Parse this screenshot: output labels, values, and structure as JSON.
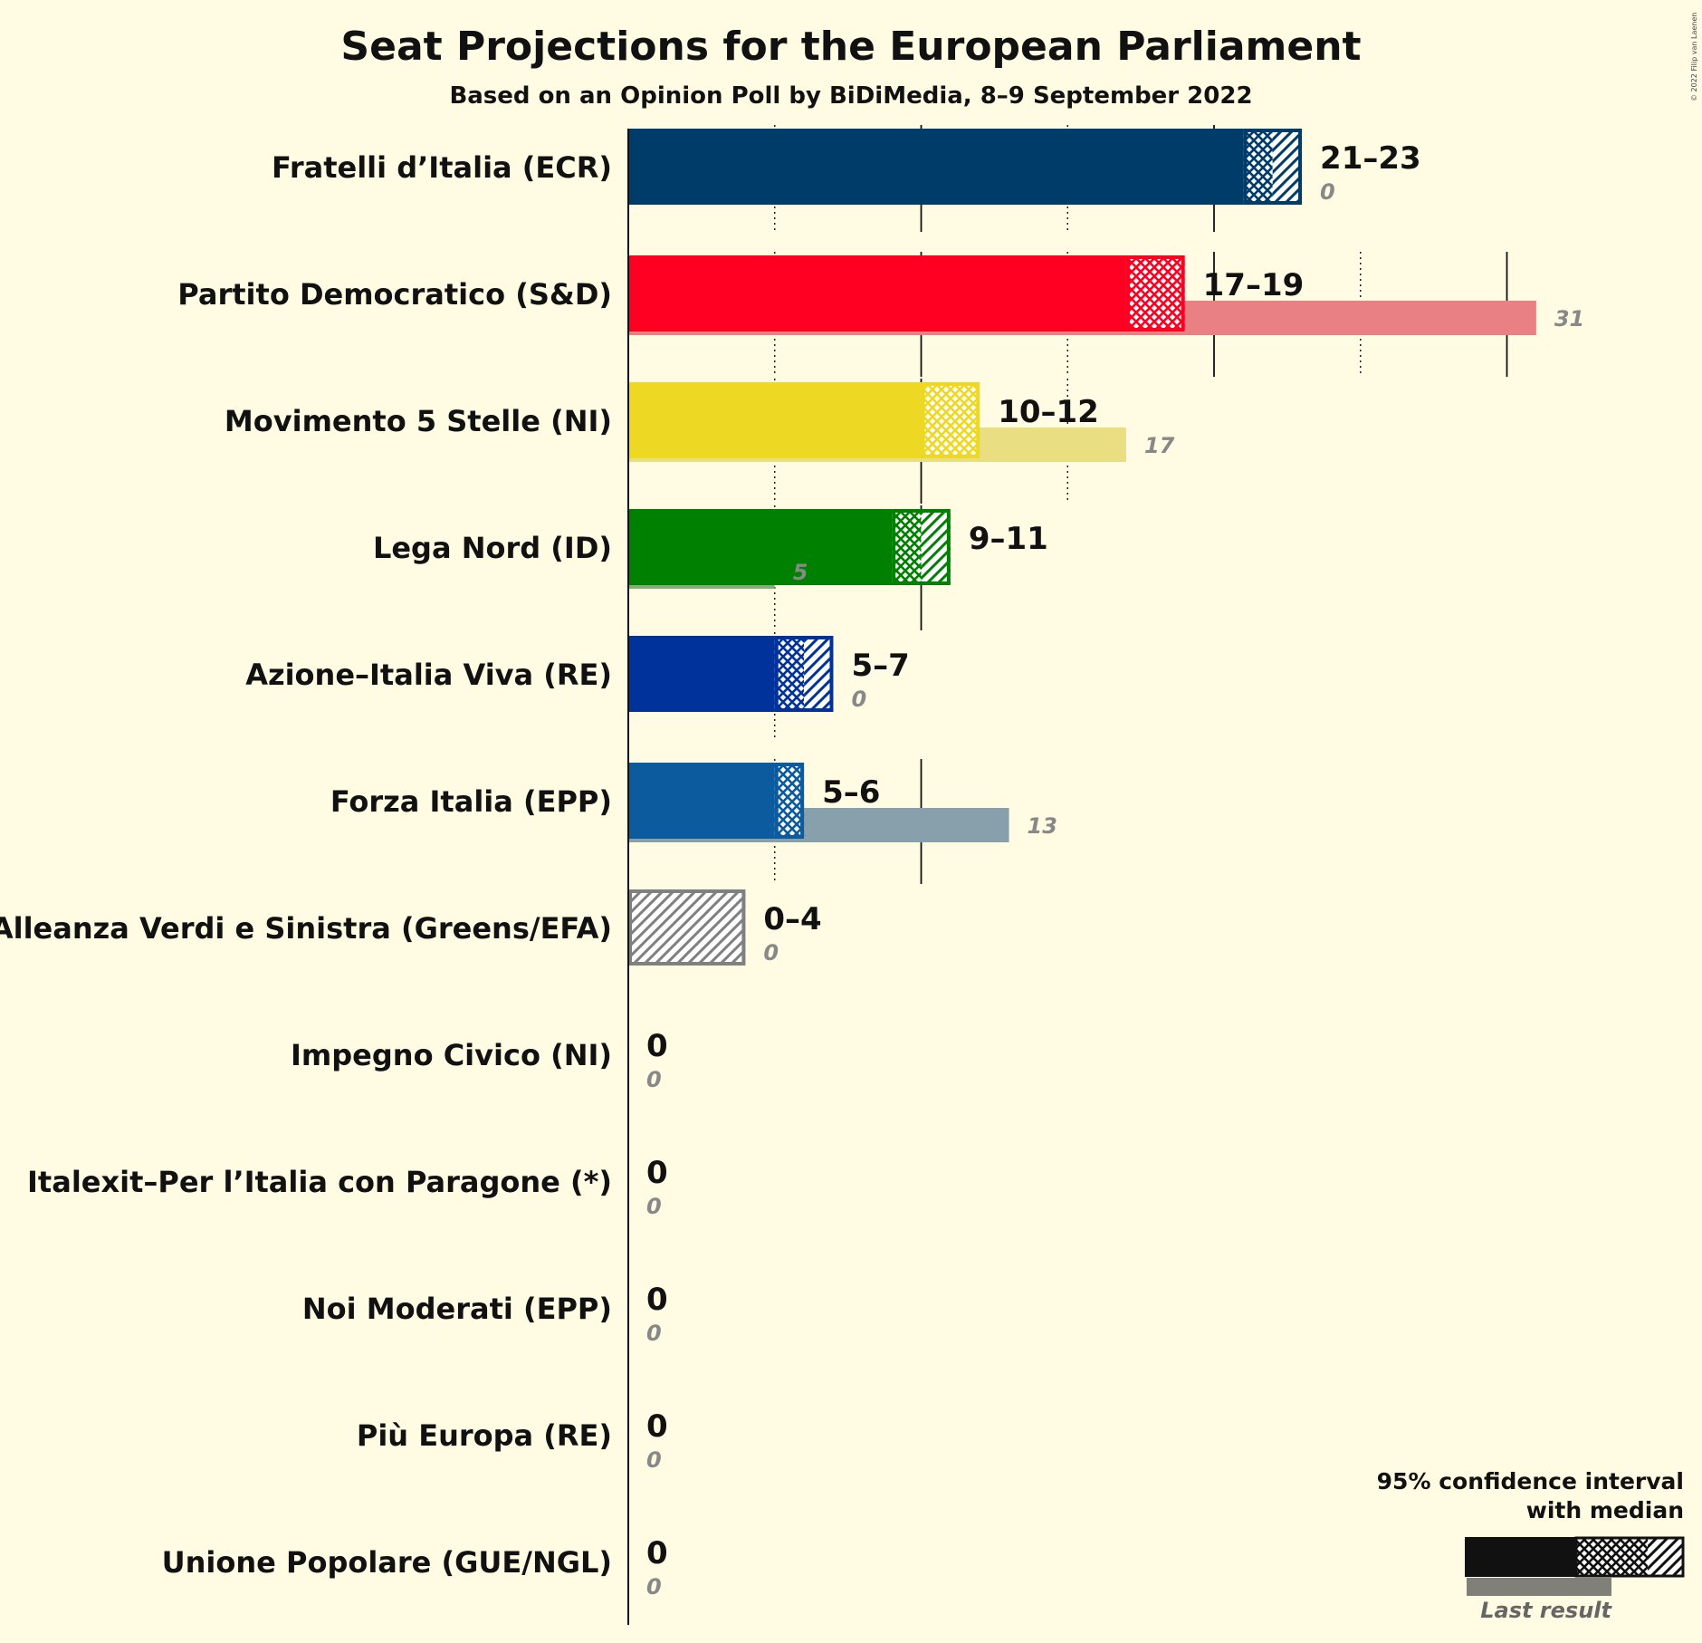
{
  "copyright": "© 2022 Filip van Laenen",
  "chart_data": {
    "type": "bar",
    "orientation": "horizontal",
    "title": "Seat Projections for the European Parliament",
    "subtitle": "Based on an Opinion Poll by BiDiMedia, 8–9 September 2022",
    "xlim": [
      0,
      31
    ],
    "grid": {
      "solid_every": 10,
      "dotted_every": 5
    },
    "legend": {
      "position": "bottom-right",
      "line1": "95% confidence interval",
      "line2": "with median",
      "last": "Last result"
    },
    "series": [
      {
        "name": "Fratelli d’Italia (ECR)",
        "color": "#003C6A",
        "low": 21,
        "median": 22,
        "high": 23,
        "range_label": "21–23",
        "last": 0,
        "last_label": "0",
        "last_color": "#7F9BB3"
      },
      {
        "name": "Partito Democratico (S&D)",
        "color": "#FF0022",
        "low": 17,
        "median": 19,
        "high": 19,
        "range_label": "17–19",
        "last": 31,
        "last_label": "31",
        "last_color": "#E98083"
      },
      {
        "name": "Movimento 5 Stelle (NI)",
        "color": "#EDD924",
        "low": 10,
        "median": 12,
        "high": 12,
        "range_label": "10–12",
        "last": 17,
        "last_label": "17",
        "last_color": "#E9DE82"
      },
      {
        "name": "Lega Nord (ID)",
        "color": "#008000",
        "low": 9,
        "median": 10,
        "high": 11,
        "range_label": "9–11",
        "last": 5,
        "last_label": "5",
        "last_color": "#82AD75"
      },
      {
        "name": "Azione–Italia Viva (RE)",
        "color": "#00329B",
        "low": 5,
        "median": 6,
        "high": 7,
        "range_label": "5–7",
        "last": 0,
        "last_label": "0",
        "last_color": "#8092C6"
      },
      {
        "name": "Forza Italia (EPP)",
        "color": "#0B5B9E",
        "low": 5,
        "median": 6,
        "high": 6,
        "range_label": "5–6",
        "last": 13,
        "last_label": "13",
        "last_color": "#88A0AB"
      },
      {
        "name": "Alleanza Verdi e Sinistra (Greens/EFA)",
        "color": "#808080",
        "low": 0,
        "median": 0,
        "high": 4,
        "range_label": "0–4",
        "last": 0,
        "last_label": "0",
        "last_color": "#B0B0B0"
      },
      {
        "name": "Impegno Civico (NI)",
        "color": "#808080",
        "low": 0,
        "median": 0,
        "high": 0,
        "range_label": "0",
        "last": 0,
        "last_label": "0",
        "last_color": "#B0B0B0"
      },
      {
        "name": "Italexit–Per l’Italia con Paragone (*)",
        "color": "#808080",
        "low": 0,
        "median": 0,
        "high": 0,
        "range_label": "0",
        "last": 0,
        "last_label": "0",
        "last_color": "#B0B0B0"
      },
      {
        "name": "Noi Moderati (EPP)",
        "color": "#808080",
        "low": 0,
        "median": 0,
        "high": 0,
        "range_label": "0",
        "last": 0,
        "last_label": "0",
        "last_color": "#B0B0B0"
      },
      {
        "name": "Più Europa (RE)",
        "color": "#808080",
        "low": 0,
        "median": 0,
        "high": 0,
        "range_label": "0",
        "last": 0,
        "last_label": "0",
        "last_color": "#B0B0B0"
      },
      {
        "name": "Unione Popolare (GUE/NGL)",
        "color": "#808080",
        "low": 0,
        "median": 0,
        "high": 0,
        "range_label": "0",
        "last": 0,
        "last_label": "0",
        "last_color": "#B0B0B0"
      }
    ]
  }
}
